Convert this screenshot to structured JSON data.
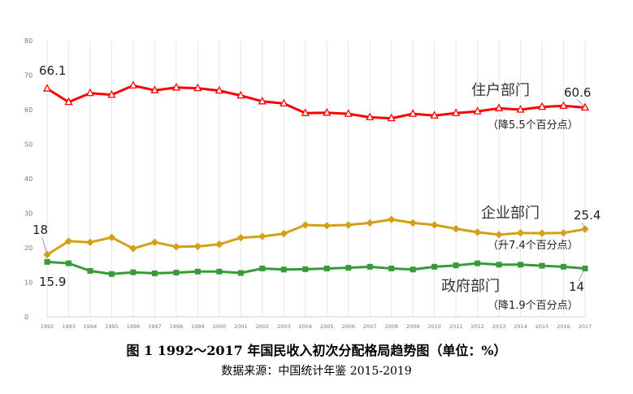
{
  "figure": {
    "caption": "图 1 1992～2017 年国民收入初次分配格局趋势图（单位：%）",
    "source": "数据来源：中国统计年鉴 2015-2019"
  },
  "chart_data": {
    "type": "line",
    "x": [
      "1992",
      "1993",
      "1994",
      "1995",
      "1996",
      "1997",
      "1998",
      "1999",
      "2000",
      "2001",
      "2002",
      "2003",
      "2004",
      "2005",
      "2006",
      "2007",
      "2008",
      "2009",
      "2010",
      "2011",
      "2012",
      "2013",
      "2014",
      "2015",
      "2016",
      "2017"
    ],
    "yticks": [
      0,
      10,
      20,
      30,
      40,
      50,
      60,
      70,
      80
    ],
    "ylim": [
      0,
      80
    ],
    "grid": "vertical",
    "series": [
      {
        "name": "住户部门",
        "change_note": "（降5.5个百分点）",
        "color": "#ff0000",
        "marker": "triangle-open",
        "values": [
          66.1,
          62.2,
          64.8,
          64.3,
          67.0,
          65.6,
          66.4,
          66.2,
          65.5,
          64.1,
          62.4,
          61.8,
          59.0,
          59.1,
          58.8,
          57.8,
          57.5,
          58.8,
          58.3,
          59.0,
          59.5,
          60.4,
          60.0,
          60.8,
          61.1,
          60.6
        ],
        "start_label": "66.1",
        "end_label": "60.6"
      },
      {
        "name": "企业部门",
        "change_note": "（升7.4个百分点）",
        "color": "#d4a017",
        "marker": "diamond",
        "values": [
          18.0,
          21.9,
          21.6,
          23.0,
          19.8,
          21.6,
          20.3,
          20.4,
          21.0,
          22.9,
          23.3,
          24.1,
          26.6,
          26.4,
          26.6,
          27.2,
          28.2,
          27.2,
          26.6,
          25.5,
          24.5,
          23.8,
          24.3,
          24.2,
          24.3,
          25.4
        ],
        "start_label": "18",
        "end_label": "25.4"
      },
      {
        "name": "政府部门",
        "change_note": "（降1.9个百分点）",
        "color": "#3a9a3a",
        "marker": "square",
        "values": [
          15.9,
          15.5,
          13.3,
          12.4,
          12.9,
          12.6,
          12.8,
          13.1,
          13.1,
          12.7,
          14.0,
          13.7,
          13.8,
          14.0,
          14.2,
          14.5,
          14.0,
          13.7,
          14.5,
          14.9,
          15.5,
          15.1,
          15.1,
          14.8,
          14.5,
          14.0
        ],
        "start_label": "15.9",
        "end_label": "14"
      }
    ]
  }
}
